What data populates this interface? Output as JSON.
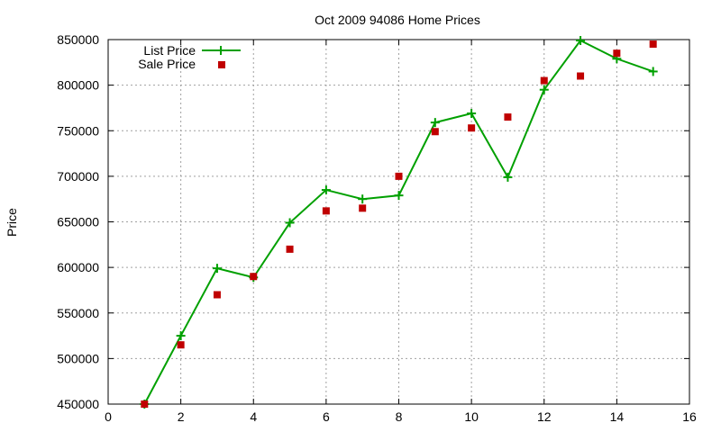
{
  "chart_data": {
    "type": "line",
    "title": "Oct 2009 94086 Home Prices",
    "xlabel": "",
    "ylabel": "Price",
    "xlim": [
      0,
      16
    ],
    "ylim": [
      450000,
      850000
    ],
    "x_ticks": [
      0,
      2,
      4,
      6,
      8,
      10,
      12,
      14,
      16
    ],
    "y_ticks": [
      450000,
      500000,
      550000,
      600000,
      650000,
      700000,
      750000,
      800000,
      850000
    ],
    "grid": true,
    "legend_position": "top-left",
    "series": [
      {
        "name": "List Price",
        "style": "line+cross-marker",
        "color": "#00a000",
        "x": [
          1,
          2,
          3,
          4,
          5,
          6,
          7,
          8,
          9,
          10,
          11,
          12,
          13,
          14,
          15
        ],
        "y": [
          450000,
          525000,
          599000,
          589000,
          649000,
          685000,
          675000,
          679000,
          759000,
          769000,
          699000,
          795000,
          849000,
          829000,
          815000
        ]
      },
      {
        "name": "Sale Price",
        "style": "square-marker",
        "color": "#c00000",
        "x": [
          1,
          2,
          3,
          4,
          5,
          6,
          7,
          8,
          9,
          10,
          11,
          12,
          13,
          14,
          15
        ],
        "y": [
          450000,
          515000,
          570000,
          590000,
          620000,
          662000,
          665000,
          700000,
          749000,
          753000,
          765000,
          805000,
          810000,
          835000,
          845000
        ]
      }
    ]
  }
}
